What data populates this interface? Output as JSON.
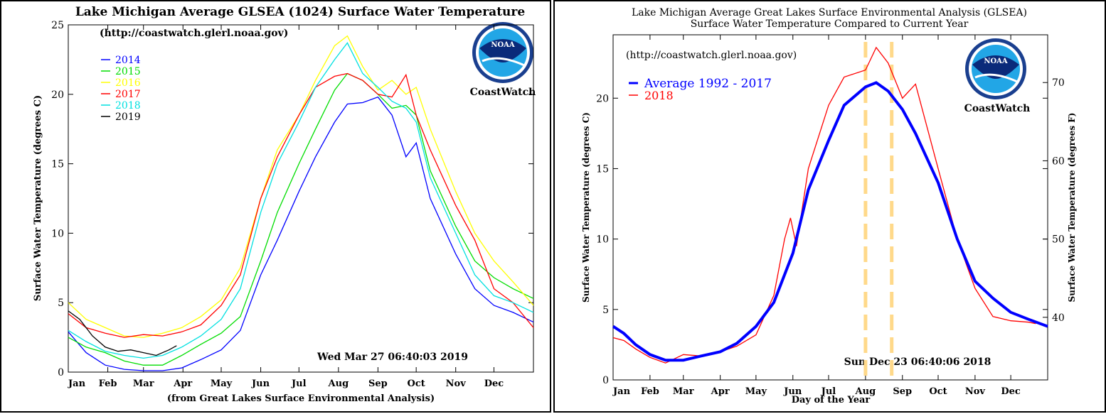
{
  "chart_data": [
    {
      "type": "line",
      "title": "Lake Michigan Average GLSEA (1024) Surface Water Temperature",
      "subtitle": "(http://coastwatch.glerl.noaa.gov)",
      "ylabel": "Surface Water Temperature (degrees C)",
      "xlabel": "(from Great Lakes Surface Environmental Analysis)",
      "timestamp": "Wed Mar 27 06:40:03 2019",
      "logo_text": "CoastWatch",
      "logo_badge": "NOAA",
      "xlim": [
        1,
        366
      ],
      "ylim": [
        0,
        25
      ],
      "yticks": [
        0,
        5,
        10,
        15,
        20,
        25
      ],
      "months": [
        "Jan",
        "Feb",
        "Mar",
        "Apr",
        "May",
        "Jun",
        "Jul",
        "Aug",
        "Sep",
        "Oct",
        "Nov",
        "Dec"
      ],
      "month_days": [
        1,
        32,
        60,
        91,
        121,
        152,
        182,
        213,
        244,
        274,
        305,
        335
      ],
      "legend": "upper-left",
      "series": [
        {
          "name": "2014",
          "color": "#0000ff",
          "x": [
            1,
            15,
            30,
            45,
            60,
            75,
            90,
            105,
            121,
            136,
            152,
            165,
            182,
            195,
            210,
            220,
            232,
            244,
            255,
            266,
            274,
            285,
            305,
            320,
            335,
            350,
            366
          ],
          "y": [
            2.9,
            1.4,
            0.5,
            0.2,
            0.1,
            0.1,
            0.3,
            0.9,
            1.6,
            3.0,
            7.0,
            9.5,
            13.0,
            15.5,
            18.0,
            19.3,
            19.4,
            19.8,
            18.5,
            15.5,
            16.5,
            12.5,
            8.5,
            6.0,
            4.8,
            4.3,
            3.6
          ]
        },
        {
          "name": "2015",
          "color": "#00dd00",
          "x": [
            1,
            15,
            30,
            45,
            60,
            75,
            90,
            105,
            121,
            136,
            152,
            165,
            182,
            195,
            210,
            220,
            232,
            244,
            255,
            266,
            274,
            285,
            305,
            320,
            335,
            350,
            366
          ],
          "y": [
            2.5,
            1.8,
            1.4,
            0.8,
            0.5,
            0.5,
            1.2,
            2.0,
            2.8,
            4.0,
            8.0,
            11.5,
            15.0,
            17.5,
            20.3,
            21.5,
            21.0,
            20.0,
            19.0,
            19.2,
            18.5,
            14.5,
            10.5,
            8.0,
            6.8,
            6.0,
            5.3
          ]
        },
        {
          "name": "2016",
          "color": "#ffff00",
          "x": [
            1,
            15,
            30,
            45,
            60,
            75,
            90,
            105,
            121,
            136,
            152,
            165,
            182,
            195,
            210,
            220,
            232,
            244,
            255,
            266,
            274,
            285,
            305,
            320,
            335,
            350,
            366
          ],
          "y": [
            5.0,
            3.8,
            3.2,
            2.6,
            2.5,
            2.8,
            3.2,
            4.0,
            5.2,
            7.5,
            12.5,
            16.0,
            18.5,
            21.0,
            23.5,
            24.2,
            22.0,
            20.3,
            21.0,
            20.0,
            20.5,
            17.5,
            13.0,
            10.0,
            8.0,
            6.5,
            4.8
          ]
        },
        {
          "name": "2017",
          "color": "#ff0000",
          "x": [
            1,
            15,
            30,
            45,
            60,
            75,
            90,
            105,
            121,
            136,
            152,
            165,
            182,
            195,
            210,
            220,
            232,
            244,
            255,
            266,
            274,
            285,
            305,
            320,
            335,
            350,
            366
          ],
          "y": [
            4.2,
            3.2,
            2.8,
            2.5,
            2.7,
            2.6,
            2.9,
            3.4,
            4.8,
            7.0,
            12.5,
            15.5,
            18.5,
            20.5,
            21.3,
            21.5,
            21.0,
            20.0,
            19.8,
            21.4,
            18.5,
            16.0,
            12.0,
            9.5,
            6.0,
            5.0,
            3.2
          ]
        },
        {
          "name": "2018",
          "color": "#00e0e0",
          "x": [
            1,
            15,
            30,
            45,
            60,
            75,
            90,
            105,
            121,
            136,
            152,
            165,
            182,
            195,
            210,
            220,
            232,
            244,
            255,
            266,
            274,
            285,
            305,
            320,
            335,
            350,
            366
          ],
          "y": [
            3.0,
            2.2,
            1.5,
            1.2,
            1.0,
            1.2,
            1.8,
            2.6,
            3.8,
            6.0,
            11.5,
            15.0,
            18.0,
            20.5,
            22.5,
            23.7,
            21.5,
            20.5,
            19.5,
            19.0,
            18.0,
            14.0,
            10.0,
            7.0,
            5.5,
            5.0,
            4.3
          ]
        },
        {
          "name": "2019",
          "color": "#000000",
          "x": [
            1,
            10,
            20,
            30,
            40,
            50,
            60,
            70,
            80,
            86
          ],
          "y": [
            4.4,
            3.8,
            2.6,
            1.8,
            1.5,
            1.6,
            1.4,
            1.2,
            1.6,
            1.9
          ]
        }
      ]
    },
    {
      "type": "line",
      "title": "Lake Michigan Average Great Lakes Surface Environmental Analysis (GLSEA)",
      "subtitle": "Surface Water Temperature Compared to Current Year",
      "url": "(http://coastwatch.glerl.noaa.gov)",
      "ylabel": "Surface Water Temperature (degrees C)",
      "y2label": "Surface Water Temperature (degrees F)",
      "xlabel": "Day of the Year",
      "timestamp": "Sun Dec 23 06:40:06 2018",
      "logo_text": "CoastWatch",
      "logo_badge": "NOAA",
      "xlim": [
        1,
        366
      ],
      "ylim": [
        0,
        24.5
      ],
      "yticks": [
        0,
        5,
        10,
        15,
        20
      ],
      "y2ticks": [
        40,
        50,
        60,
        70
      ],
      "months": [
        "Jan",
        "Feb",
        "Mar",
        "Apr",
        "May",
        "Jun",
        "Jul",
        "Aug",
        "Sep",
        "Oct",
        "Nov",
        "Dec"
      ],
      "month_days": [
        1,
        32,
        60,
        91,
        121,
        152,
        182,
        213,
        244,
        274,
        305,
        335
      ],
      "dashed_lines_x": [
        213,
        235
      ],
      "legend": "upper-left",
      "series": [
        {
          "name": "Average 1992 - 2017",
          "color": "#0000ff",
          "x": [
            1,
            10,
            20,
            32,
            45,
            60,
            75,
            91,
            105,
            121,
            136,
            152,
            165,
            182,
            195,
            213,
            222,
            232,
            244,
            255,
            274,
            290,
            305,
            320,
            335,
            350,
            366
          ],
          "y": [
            3.8,
            3.3,
            2.5,
            1.8,
            1.4,
            1.4,
            1.7,
            2.0,
            2.6,
            3.8,
            5.5,
            9.0,
            13.5,
            17.0,
            19.5,
            20.8,
            21.1,
            20.5,
            19.2,
            17.5,
            14.0,
            10.0,
            7.0,
            5.8,
            4.8,
            4.3,
            3.8
          ]
        },
        {
          "name": "2018",
          "color": "#ff0000",
          "x": [
            1,
            10,
            20,
            32,
            45,
            60,
            75,
            91,
            105,
            121,
            136,
            145,
            150,
            155,
            165,
            182,
            195,
            213,
            222,
            232,
            244,
            255,
            274,
            290,
            305,
            320,
            335,
            350,
            356
          ],
          "y": [
            3.0,
            2.8,
            2.2,
            1.6,
            1.2,
            1.8,
            1.7,
            2.0,
            2.4,
            3.2,
            6.0,
            10.0,
            11.5,
            9.5,
            15.0,
            19.5,
            21.5,
            22.0,
            23.6,
            22.5,
            20.0,
            21.0,
            15.0,
            10.0,
            6.5,
            4.5,
            4.2,
            4.1,
            4.0
          ]
        }
      ]
    }
  ]
}
